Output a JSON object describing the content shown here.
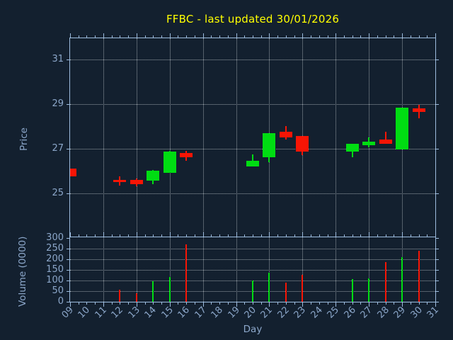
{
  "title": "FFBC - last updated 30/01/2026",
  "colors": {
    "background": "#13202f",
    "axis_line": "#9dbcde",
    "text": "#8ba6c9",
    "grid": "#c3c9cf",
    "up": "#00dd12",
    "down": "#f71505",
    "title": "#ffff00"
  },
  "chart_data": [
    {
      "type": "candlestick",
      "title": "FFBC - last updated 30/01/2026",
      "xlabel": "Day",
      "ylabel": "Price",
      "x_ticks": [
        "09",
        "10",
        "11",
        "12",
        "13",
        "14",
        "15",
        "16",
        "17",
        "18",
        "19",
        "20",
        "21",
        "22",
        "23",
        "24",
        "25",
        "26",
        "27",
        "28",
        "29",
        "30",
        "31"
      ],
      "x_day_start": 9,
      "x_day_end": 31,
      "grid_x_days": [
        11,
        13,
        15,
        17,
        19,
        21,
        23,
        25,
        27,
        29
      ],
      "y_ticks": [
        25,
        27,
        29,
        31
      ],
      "ylim": [
        23.05,
        31.95
      ],
      "grid": true,
      "candles": [
        {
          "day": 9,
          "open": 26.1,
          "high": 26.1,
          "low": 25.75,
          "close": 25.75
        },
        {
          "day": 12,
          "open": 25.6,
          "high": 25.75,
          "low": 25.35,
          "close": 25.5
        },
        {
          "day": 13,
          "open": 25.6,
          "high": 25.65,
          "low": 25.3,
          "close": 25.4
        },
        {
          "day": 14,
          "open": 25.55,
          "high": 26.05,
          "low": 25.4,
          "close": 26.0
        },
        {
          "day": 15,
          "open": 25.9,
          "high": 26.9,
          "low": 25.9,
          "close": 26.85
        },
        {
          "day": 16,
          "open": 26.8,
          "high": 26.9,
          "low": 26.45,
          "close": 26.6
        },
        {
          "day": 20,
          "open": 26.2,
          "high": 26.75,
          "low": 26.2,
          "close": 26.45
        },
        {
          "day": 21,
          "open": 26.6,
          "high": 27.7,
          "low": 26.4,
          "close": 27.7
        },
        {
          "day": 22,
          "open": 27.75,
          "high": 28.0,
          "low": 27.4,
          "close": 27.5
        },
        {
          "day": 23,
          "open": 27.55,
          "high": 27.55,
          "low": 26.7,
          "close": 26.85
        },
        {
          "day": 26,
          "open": 26.85,
          "high": 27.2,
          "low": 26.6,
          "close": 27.2
        },
        {
          "day": 27,
          "open": 27.15,
          "high": 27.5,
          "low": 27.05,
          "close": 27.3
        },
        {
          "day": 28,
          "open": 27.4,
          "high": 27.75,
          "low": 27.2,
          "close": 27.2
        },
        {
          "day": 29,
          "open": 26.95,
          "high": 28.85,
          "low": 26.95,
          "close": 28.85
        },
        {
          "day": 30,
          "open": 28.8,
          "high": 28.95,
          "low": 28.35,
          "close": 28.65
        }
      ]
    },
    {
      "type": "bar",
      "ylabel": "Volume (0000)",
      "y_ticks": [
        0,
        50,
        100,
        150,
        200,
        250,
        300
      ],
      "ylim": [
        0,
        303
      ],
      "grid": true,
      "bars": [
        {
          "day": 12,
          "value": 55,
          "direction": "down"
        },
        {
          "day": 13,
          "value": 40,
          "direction": "down"
        },
        {
          "day": 14,
          "value": 95,
          "direction": "up"
        },
        {
          "day": 15,
          "value": 115,
          "direction": "up"
        },
        {
          "day": 16,
          "value": 270,
          "direction": "down"
        },
        {
          "day": 20,
          "value": 100,
          "direction": "up"
        },
        {
          "day": 21,
          "value": 135,
          "direction": "up"
        },
        {
          "day": 22,
          "value": 90,
          "direction": "down"
        },
        {
          "day": 23,
          "value": 125,
          "direction": "down"
        },
        {
          "day": 26,
          "value": 105,
          "direction": "up"
        },
        {
          "day": 27,
          "value": 110,
          "direction": "up"
        },
        {
          "day": 28,
          "value": 185,
          "direction": "down"
        },
        {
          "day": 29,
          "value": 210,
          "direction": "up"
        },
        {
          "day": 30,
          "value": 240,
          "direction": "down"
        }
      ]
    }
  ]
}
